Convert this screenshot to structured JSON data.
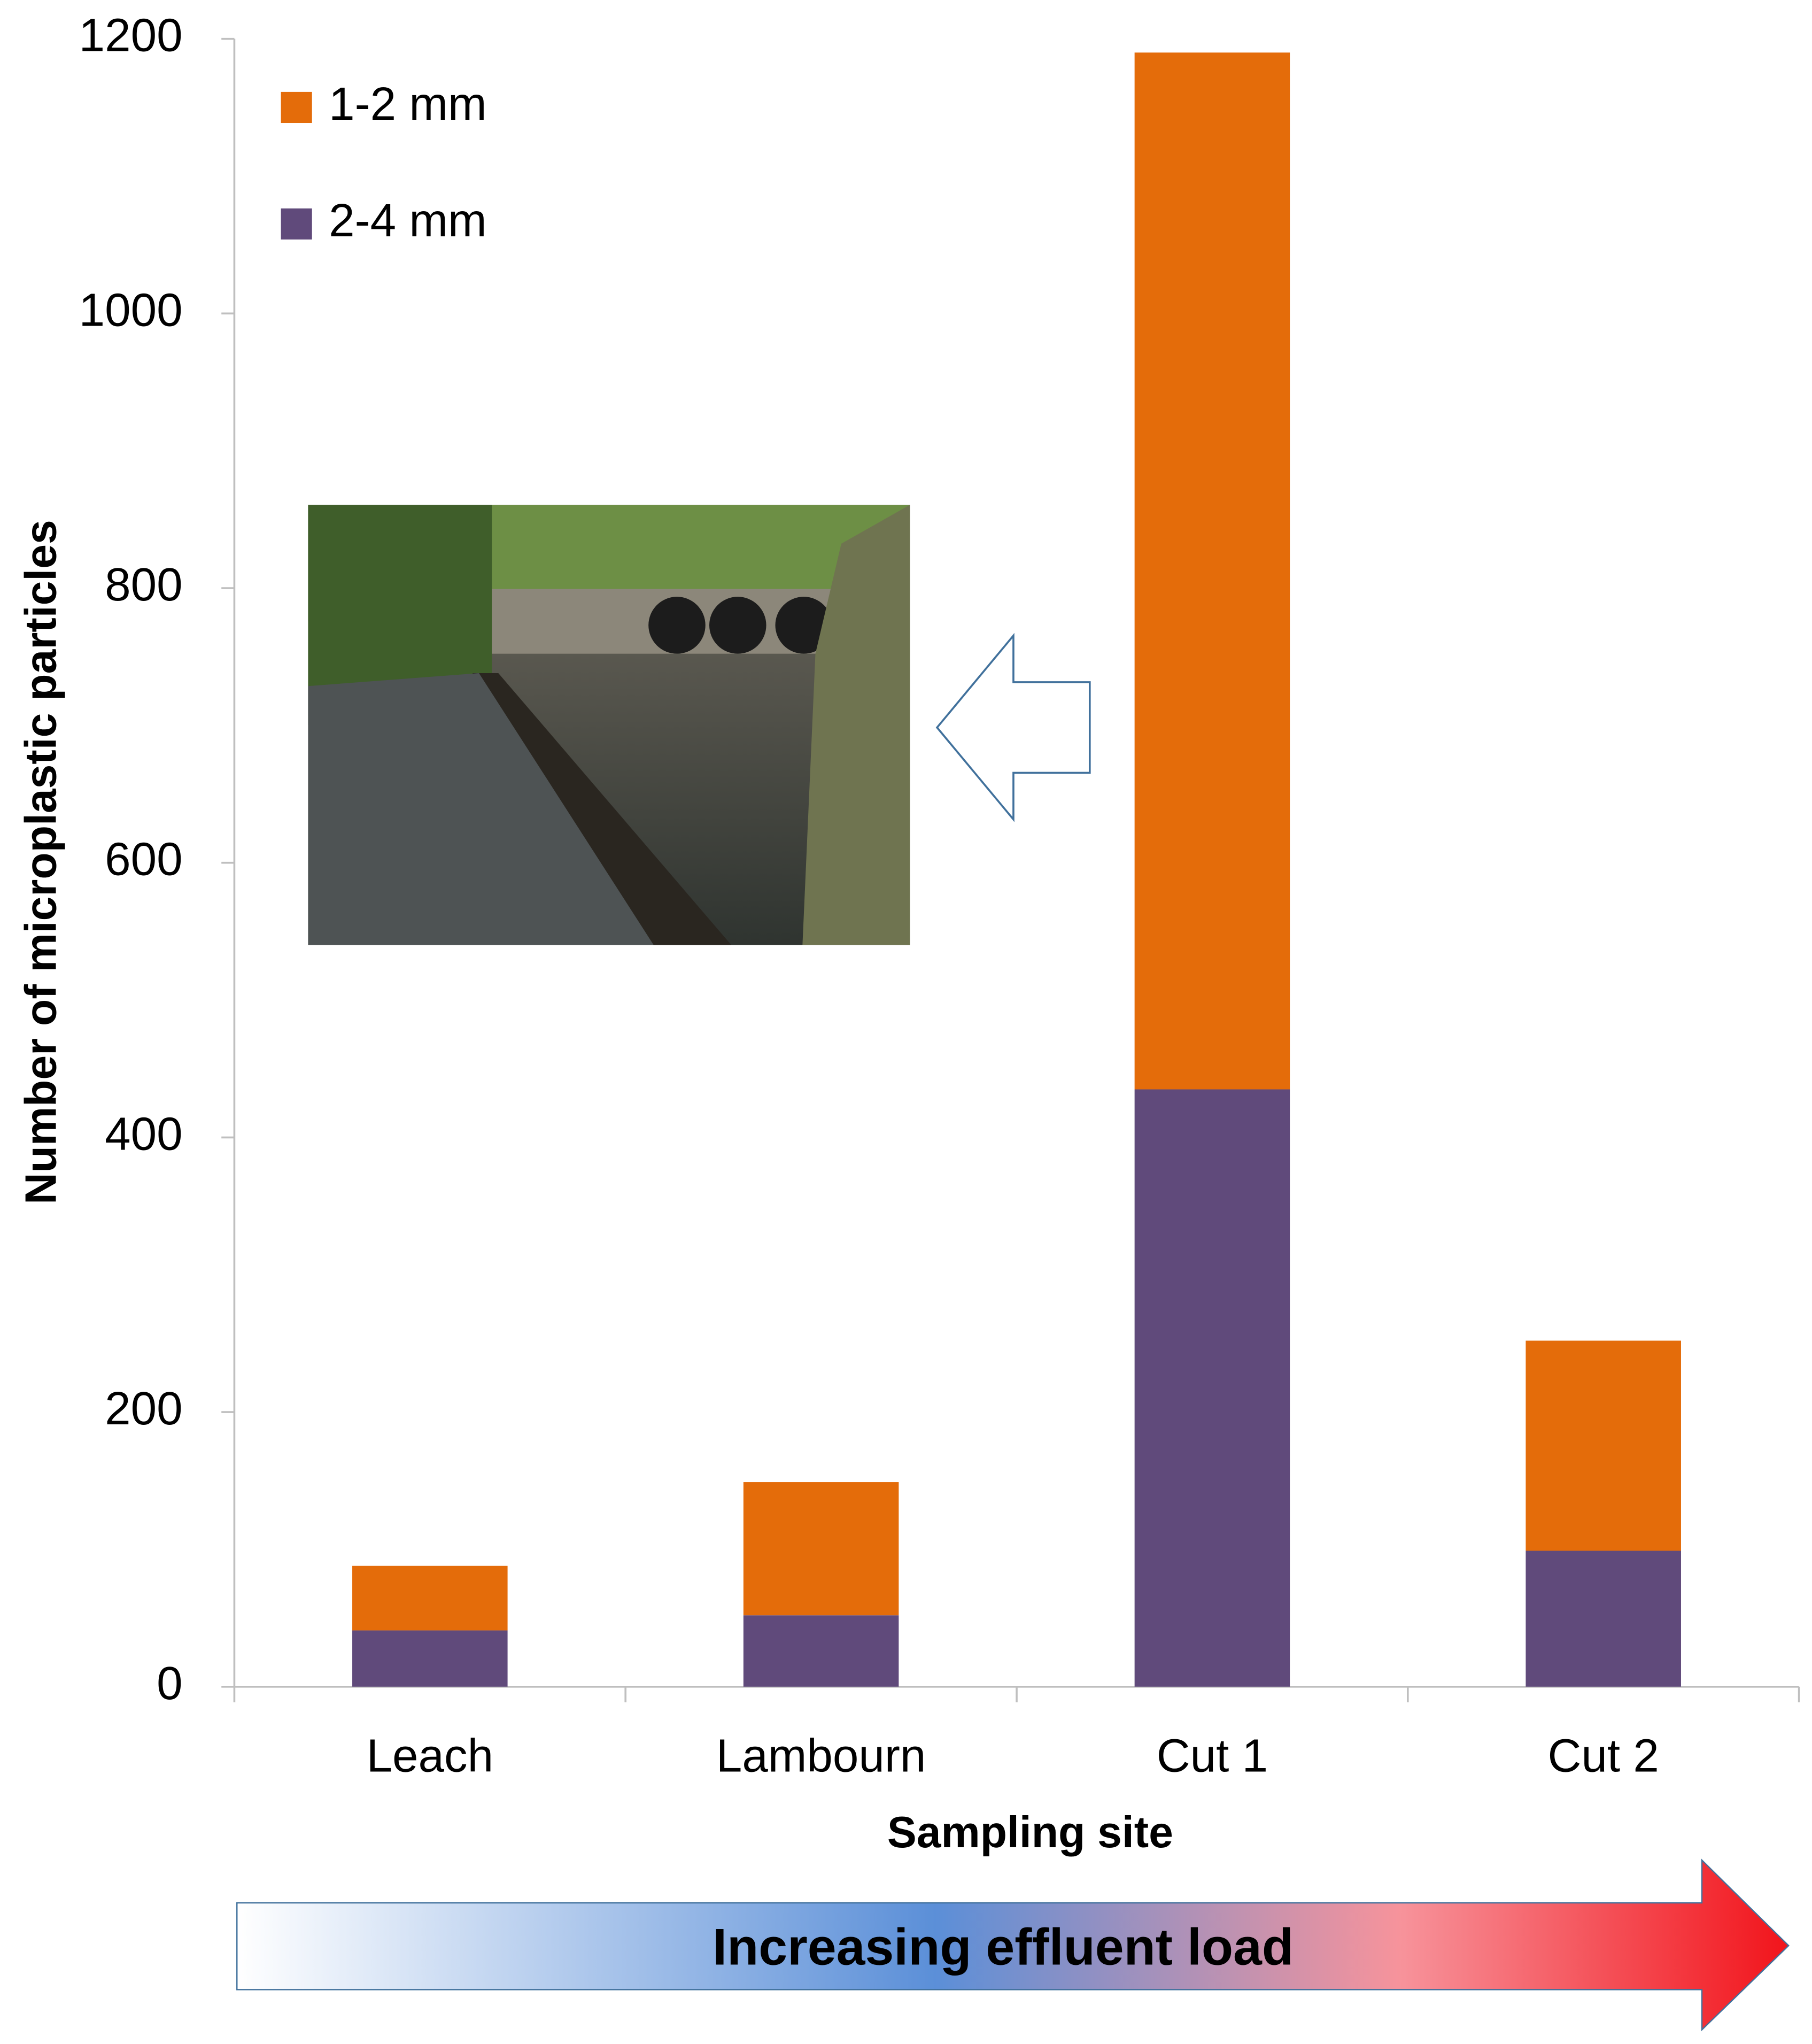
{
  "chart_data": {
    "type": "stacked-bar",
    "categories": [
      "Leach",
      "Lambourn",
      "Cut 1",
      "Cut 2"
    ],
    "series": [
      {
        "name": "2-4 mm",
        "color": "#604a7b",
        "values": [
          41,
          52,
          435,
          99
        ]
      },
      {
        "name": "1-2 mm",
        "color": "#e46c0a",
        "values": [
          47,
          97,
          755,
          153
        ]
      }
    ],
    "ylim": [
      0,
      1200
    ],
    "yticks": [
      0,
      200,
      400,
      600,
      800,
      1000,
      1200
    ],
    "x_label": "Sampling site",
    "y_label": "Number of microplastic particles",
    "legend": "top-left",
    "grid": false,
    "annotation": "Increasing effluent load"
  }
}
